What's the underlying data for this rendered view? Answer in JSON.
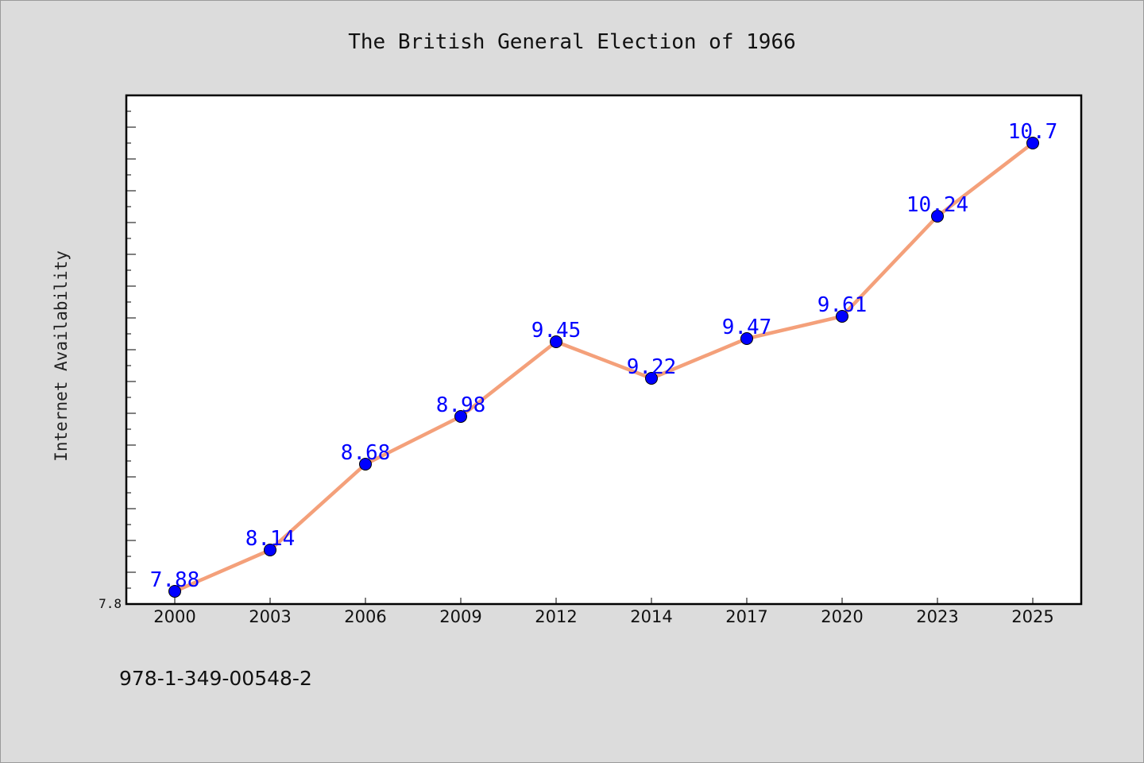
{
  "chart_data": {
    "type": "line",
    "title": "The British General Election of 1966",
    "xlabel": "",
    "ylabel": "Internet Availability",
    "categories": [
      "2000",
      "2003",
      "2006",
      "2009",
      "2012",
      "2014",
      "2017",
      "2020",
      "2023",
      "2025"
    ],
    "series": [
      {
        "values": [
          7.88,
          8.14,
          8.68,
          8.98,
          9.45,
          9.22,
          9.47,
          9.61,
          10.24,
          10.7
        ],
        "labels": [
          "7.88",
          "8.14",
          "8.68",
          "8.98",
          "9.45",
          "9.22",
          "9.47",
          "9.61",
          "10.24",
          "10.7"
        ]
      }
    ],
    "ylim": [
      7.8,
      11.0
    ],
    "yticks_labeled": [
      "7.8"
    ],
    "grid": false,
    "legend": "none",
    "colors": {
      "line": "#f4a07a",
      "marker": "#0000ff",
      "data_label": "#0000ff",
      "plot_bg": "#ffffff",
      "page_bg": "#dcdcdc"
    }
  },
  "footer_text": "978-1-349-00548-2"
}
